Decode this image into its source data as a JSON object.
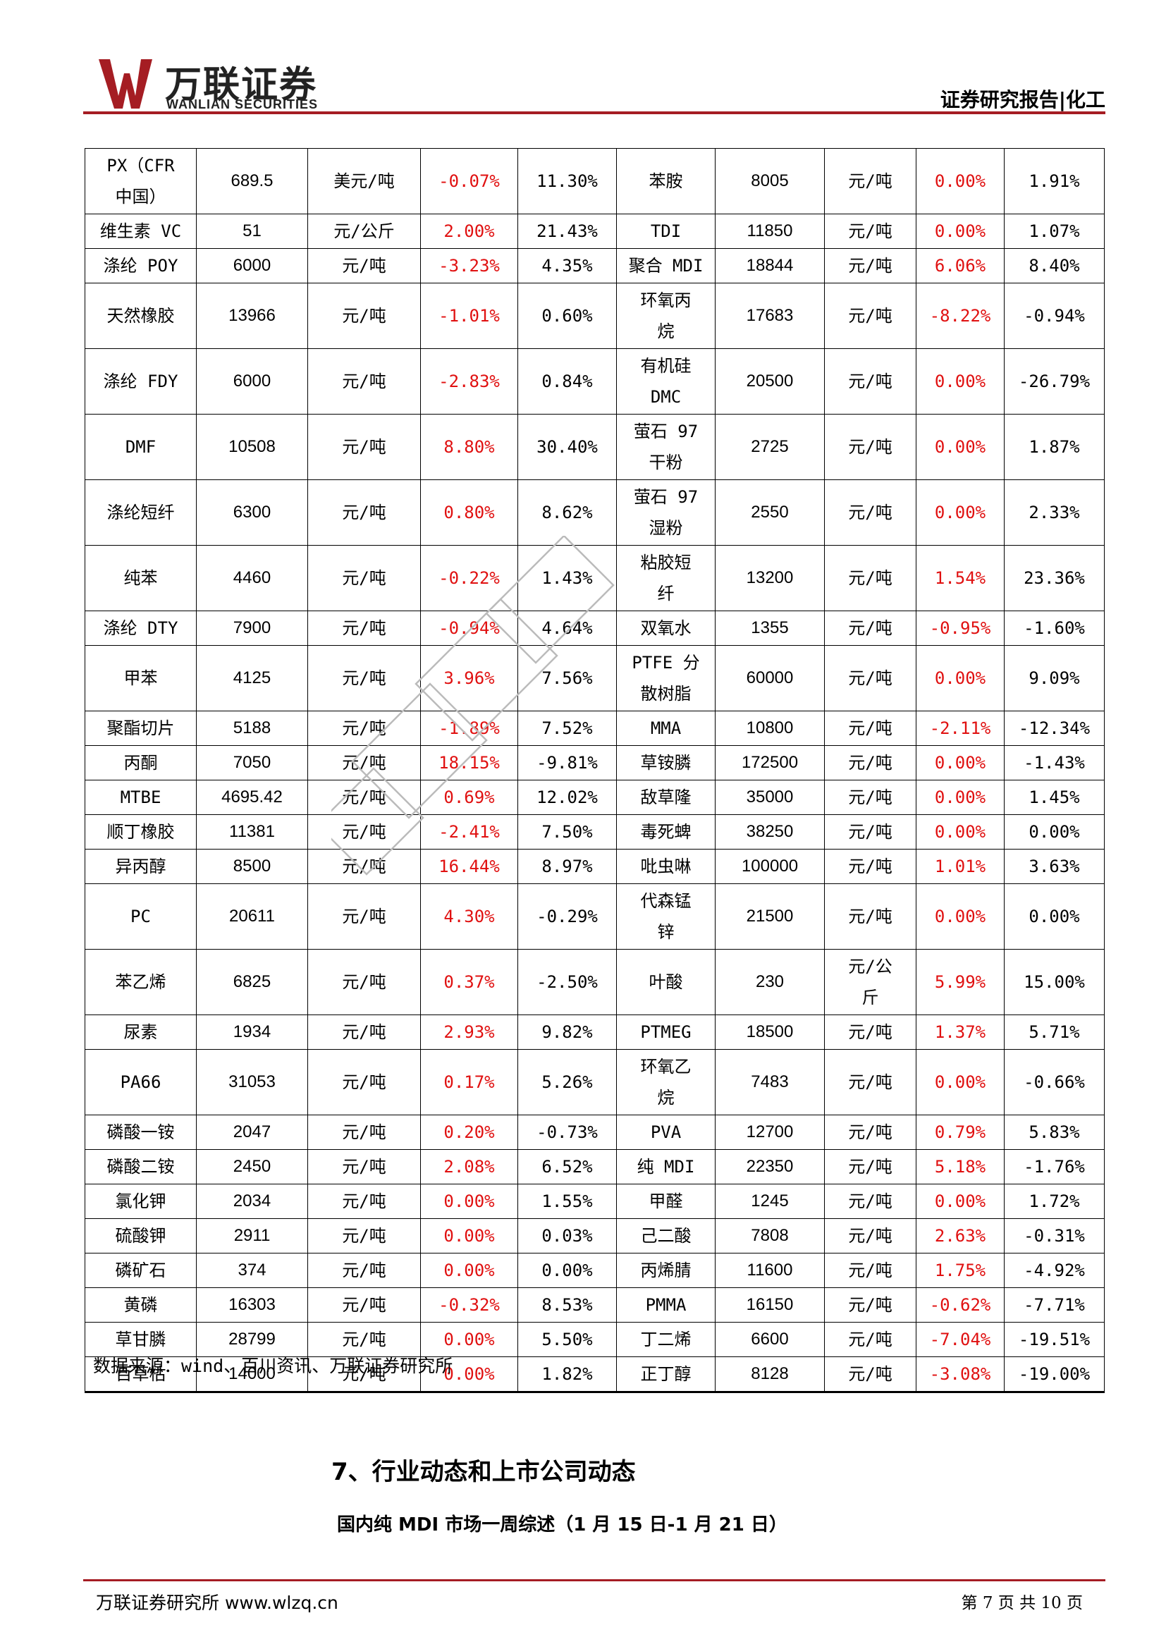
{
  "header": {
    "logo_cn": "万联证券",
    "logo_en": "WANLIAN SECURITIES",
    "report_type": "证券研究报告|化工",
    "brand_color": "#a51d23"
  },
  "table": {
    "rows": [
      [
        "PX（CFR\n中国）",
        "689.5",
        "美元/吨",
        "-0.07%",
        "11.30%",
        "苯胺",
        "8005",
        "元/吨",
        "0.00%",
        "1.91%"
      ],
      [
        "维生素 VC",
        "51",
        "元/公斤",
        "2.00%",
        "21.43%",
        "TDI",
        "11850",
        "元/吨",
        "0.00%",
        "1.07%"
      ],
      [
        "涤纶 POY",
        "6000",
        "元/吨",
        "-3.23%",
        "4.35%",
        "聚合 MDI",
        "18844",
        "元/吨",
        "6.06%",
        "8.40%"
      ],
      [
        "天然橡胶",
        "13966",
        "元/吨",
        "-1.01%",
        "0.60%",
        "环氧丙\n烷",
        "17683",
        "元/吨",
        "-8.22%",
        "-0.94%"
      ],
      [
        "涤纶 FDY",
        "6000",
        "元/吨",
        "-2.83%",
        "0.84%",
        "有机硅\nDMC",
        "20500",
        "元/吨",
        "0.00%",
        "-26.79%"
      ],
      [
        "DMF",
        "10508",
        "元/吨",
        "8.80%",
        "30.40%",
        "萤石 97\n干粉",
        "2725",
        "元/吨",
        "0.00%",
        "1.87%"
      ],
      [
        "涤纶短纤",
        "6300",
        "元/吨",
        "0.80%",
        "8.62%",
        "萤石 97\n湿粉",
        "2550",
        "元/吨",
        "0.00%",
        "2.33%"
      ],
      [
        "纯苯",
        "4460",
        "元/吨",
        "-0.22%",
        "1.43%",
        "粘胶短\n纤",
        "13200",
        "元/吨",
        "1.54%",
        "23.36%"
      ],
      [
        "涤纶 DTY",
        "7900",
        "元/吨",
        "-0.94%",
        "4.64%",
        "双氧水",
        "1355",
        "元/吨",
        "-0.95%",
        "-1.60%"
      ],
      [
        "甲苯",
        "4125",
        "元/吨",
        "3.96%",
        "7.56%",
        "PTFE 分\n散树脂",
        "60000",
        "元/吨",
        "0.00%",
        "9.09%"
      ],
      [
        "聚酯切片",
        "5188",
        "元/吨",
        "-1.89%",
        "7.52%",
        "MMA",
        "10800",
        "元/吨",
        "-2.11%",
        "-12.34%"
      ],
      [
        "丙酮",
        "7050",
        "元/吨",
        "18.15%",
        "-9.81%",
        "草铵膦",
        "172500",
        "元/吨",
        "0.00%",
        "-1.43%"
      ],
      [
        "MTBE",
        "4695.42",
        "元/吨",
        "0.69%",
        "12.02%",
        "敌草隆",
        "35000",
        "元/吨",
        "0.00%",
        "1.45%"
      ],
      [
        "顺丁橡胶",
        "11381",
        "元/吨",
        "-2.41%",
        "7.50%",
        "毒死蜱",
        "38250",
        "元/吨",
        "0.00%",
        "0.00%"
      ],
      [
        "异丙醇",
        "8500",
        "元/吨",
        "16.44%",
        "8.97%",
        "吡虫啉",
        "100000",
        "元/吨",
        "1.01%",
        "3.63%"
      ],
      [
        "PC",
        "20611",
        "元/吨",
        "4.30%",
        "-0.29%",
        "代森锰\n锌",
        "21500",
        "元/吨",
        "0.00%",
        "0.00%"
      ],
      [
        "苯乙烯",
        "6825",
        "元/吨",
        "0.37%",
        "-2.50%",
        "叶酸",
        "230",
        "元/公\n斤",
        "5.99%",
        "15.00%"
      ],
      [
        "尿素",
        "1934",
        "元/吨",
        "2.93%",
        "9.82%",
        "PTMEG",
        "18500",
        "元/吨",
        "1.37%",
        "5.71%"
      ],
      [
        "PA66",
        "31053",
        "元/吨",
        "0.17%",
        "5.26%",
        "环氧乙\n烷",
        "7483",
        "元/吨",
        "0.00%",
        "-0.66%"
      ],
      [
        "磷酸一铵",
        "2047",
        "元/吨",
        "0.20%",
        "-0.73%",
        "PVA",
        "12700",
        "元/吨",
        "0.79%",
        "5.83%"
      ],
      [
        "磷酸二铵",
        "2450",
        "元/吨",
        "2.08%",
        "6.52%",
        "纯 MDI",
        "22350",
        "元/吨",
        "5.18%",
        "-1.76%"
      ],
      [
        "氯化钾",
        "2034",
        "元/吨",
        "0.00%",
        "1.55%",
        "甲醛",
        "1245",
        "元/吨",
        "0.00%",
        "1.72%"
      ],
      [
        "硫酸钾",
        "2911",
        "元/吨",
        "0.00%",
        "0.03%",
        "己二酸",
        "7808",
        "元/吨",
        "2.63%",
        "-0.31%"
      ],
      [
        "磷矿石",
        "374",
        "元/吨",
        "0.00%",
        "0.00%",
        "丙烯腈",
        "11600",
        "元/吨",
        "1.75%",
        "-4.92%"
      ],
      [
        "黄磷",
        "16303",
        "元/吨",
        "-0.32%",
        "8.53%",
        "PMMA",
        "16150",
        "元/吨",
        "-0.62%",
        "-7.71%"
      ],
      [
        "草甘膦",
        "28799",
        "元/吨",
        "0.00%",
        "5.50%",
        "丁二烯",
        "6600",
        "元/吨",
        "-7.04%",
        "-19.51%"
      ],
      [
        "百草枯",
        "14000",
        "元/吨",
        "0.00%",
        "1.82%",
        "正丁醇",
        "8128",
        "元/吨",
        "-3.08%",
        "-19.00%"
      ]
    ],
    "highlight_color": "#e01010"
  },
  "source": "数据来源：wind、百川资讯、万联证券研究所",
  "section_title": "7、行业动态和上市公司动态",
  "subsection_title": "国内纯 MDI 市场一周综述（1 月 15 日-1 月 21 日）",
  "footer": {
    "left": "万联证券研究所 www.wlzq.cn",
    "right": "第 7 页 共 10 页"
  }
}
